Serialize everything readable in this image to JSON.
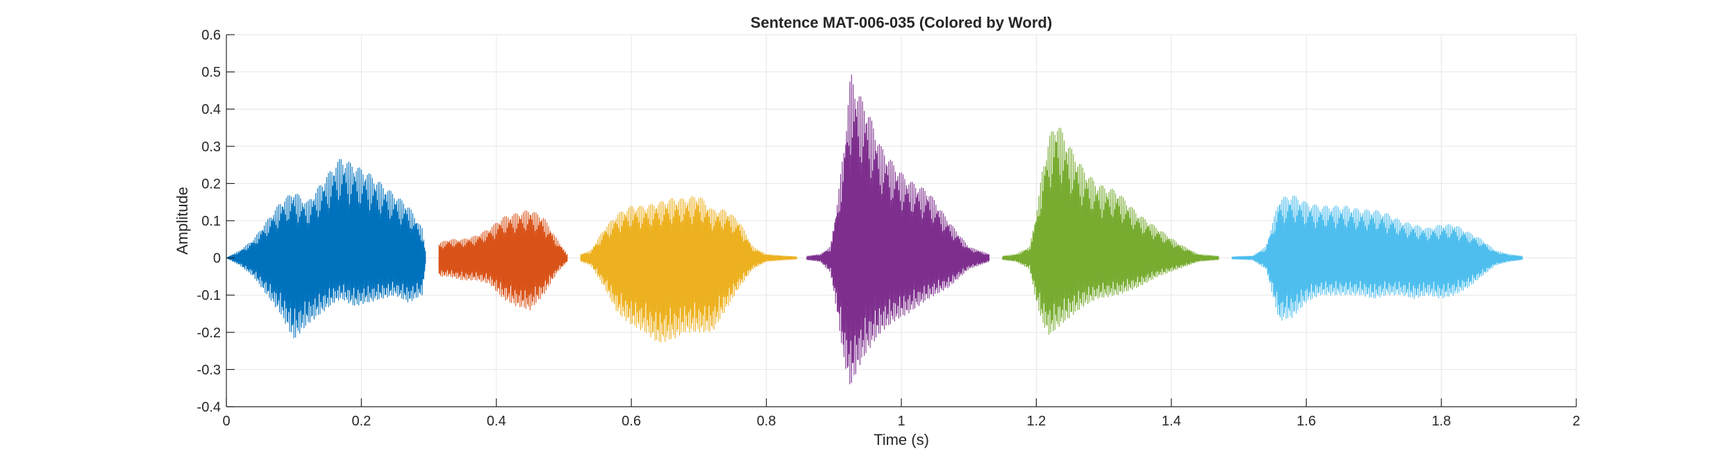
{
  "chart_data": {
    "type": "line",
    "title": "Sentence MAT-006-035 (Colored by Word)",
    "xlabel": "Time (s)",
    "ylabel": "Amplitude",
    "xlim": [
      0,
      2
    ],
    "ylim": [
      -0.4,
      0.6
    ],
    "xticks": [
      0,
      0.2,
      0.4,
      0.6,
      0.8,
      1,
      1.2,
      1.4,
      1.6,
      1.8,
      2
    ],
    "xtick_labels": [
      "0",
      "0.2",
      "0.4",
      "0.6",
      "0.8",
      "1",
      "1.2",
      "1.4",
      "1.6",
      "1.8",
      "2"
    ],
    "yticks": [
      -0.4,
      -0.3,
      -0.2,
      -0.1,
      0,
      0.1,
      0.2,
      0.3,
      0.4,
      0.5,
      0.6
    ],
    "ytick_labels": [
      "-0.4",
      "-0.3",
      "-0.2",
      "-0.1",
      "0",
      "0.1",
      "0.2",
      "0.3",
      "0.4",
      "0.5",
      "0.6"
    ],
    "grid": true,
    "legend": "none",
    "series": [
      {
        "color": "#0072BD",
        "x": [
          0.0,
          0.02,
          0.04,
          0.06,
          0.08,
          0.1,
          0.12,
          0.14,
          0.16,
          0.17,
          0.19,
          0.21,
          0.23,
          0.25,
          0.27,
          0.29,
          0.295
        ],
        "upper": [
          0.0,
          0.02,
          0.05,
          0.1,
          0.15,
          0.18,
          0.15,
          0.2,
          0.25,
          0.27,
          0.25,
          0.23,
          0.2,
          0.17,
          0.14,
          0.08,
          0.02
        ],
        "lower": [
          0.0,
          -0.02,
          -0.05,
          -0.1,
          -0.15,
          -0.22,
          -0.18,
          -0.15,
          -0.12,
          -0.11,
          -0.13,
          -0.12,
          -0.11,
          -0.1,
          -0.12,
          -0.1,
          -0.02
        ]
      },
      {
        "color": "#D95319",
        "x": [
          0.315,
          0.33,
          0.35,
          0.37,
          0.39,
          0.41,
          0.43,
          0.45,
          0.47,
          0.49,
          0.505
        ],
        "upper": [
          0.04,
          0.05,
          0.05,
          0.06,
          0.08,
          0.11,
          0.12,
          0.13,
          0.11,
          0.05,
          0.01
        ],
        "lower": [
          -0.05,
          -0.05,
          -0.06,
          -0.06,
          -0.07,
          -0.11,
          -0.13,
          -0.14,
          -0.1,
          -0.04,
          -0.01
        ]
      },
      {
        "color": "#EDB120",
        "x": [
          0.525,
          0.54,
          0.56,
          0.58,
          0.6,
          0.62,
          0.64,
          0.66,
          0.68,
          0.7,
          0.72,
          0.74,
          0.76,
          0.78,
          0.8,
          0.83,
          0.845
        ],
        "upper": [
          0.01,
          0.02,
          0.08,
          0.12,
          0.14,
          0.14,
          0.15,
          0.16,
          0.16,
          0.17,
          0.13,
          0.13,
          0.1,
          0.03,
          0.01,
          0.005,
          0.003
        ],
        "lower": [
          -0.01,
          -0.02,
          -0.08,
          -0.15,
          -0.18,
          -0.2,
          -0.23,
          -0.22,
          -0.2,
          -0.2,
          -0.2,
          -0.14,
          -0.08,
          -0.03,
          -0.01,
          -0.005,
          -0.003
        ]
      },
      {
        "color": "#7E2F8E",
        "x": [
          0.86,
          0.88,
          0.895,
          0.905,
          0.915,
          0.925,
          0.935,
          0.95,
          0.97,
          0.99,
          1.01,
          1.04,
          1.07,
          1.1,
          1.13
        ],
        "upper": [
          0.005,
          0.01,
          0.03,
          0.15,
          0.3,
          0.5,
          0.45,
          0.4,
          0.3,
          0.25,
          0.21,
          0.18,
          0.1,
          0.03,
          0.01
        ],
        "lower": [
          -0.005,
          -0.01,
          -0.04,
          -0.15,
          -0.28,
          -0.35,
          -0.3,
          -0.25,
          -0.2,
          -0.17,
          -0.15,
          -0.11,
          -0.08,
          -0.03,
          -0.01
        ]
      },
      {
        "color": "#77AC30",
        "x": [
          1.15,
          1.17,
          1.19,
          1.2,
          1.21,
          1.22,
          1.23,
          1.25,
          1.27,
          1.29,
          1.32,
          1.35,
          1.38,
          1.41,
          1.44,
          1.47
        ],
        "upper": [
          0.005,
          0.01,
          0.03,
          0.12,
          0.25,
          0.33,
          0.37,
          0.3,
          0.24,
          0.2,
          0.18,
          0.12,
          0.08,
          0.04,
          0.01,
          0.005
        ],
        "lower": [
          -0.005,
          -0.01,
          -0.03,
          -0.12,
          -0.18,
          -0.21,
          -0.19,
          -0.16,
          -0.13,
          -0.11,
          -0.1,
          -0.08,
          -0.05,
          -0.03,
          -0.01,
          -0.005
        ]
      },
      {
        "color": "#4DBEEE",
        "x": [
          1.49,
          1.52,
          1.54,
          1.56,
          1.58,
          1.6,
          1.62,
          1.64,
          1.66,
          1.68,
          1.7,
          1.72,
          1.74,
          1.76,
          1.78,
          1.8,
          1.82,
          1.84,
          1.86,
          1.88,
          1.9,
          1.92
        ],
        "upper": [
          0.003,
          0.005,
          0.03,
          0.16,
          0.17,
          0.15,
          0.14,
          0.14,
          0.14,
          0.13,
          0.13,
          0.12,
          0.1,
          0.09,
          0.08,
          0.09,
          0.09,
          0.07,
          0.05,
          0.02,
          0.01,
          0.005
        ],
        "lower": [
          -0.003,
          -0.005,
          -0.03,
          -0.17,
          -0.16,
          -0.12,
          -0.1,
          -0.1,
          -0.1,
          -0.1,
          -0.11,
          -0.1,
          -0.1,
          -0.11,
          -0.1,
          -0.11,
          -0.1,
          -0.08,
          -0.05,
          -0.02,
          -0.01,
          -0.005
        ]
      }
    ]
  }
}
